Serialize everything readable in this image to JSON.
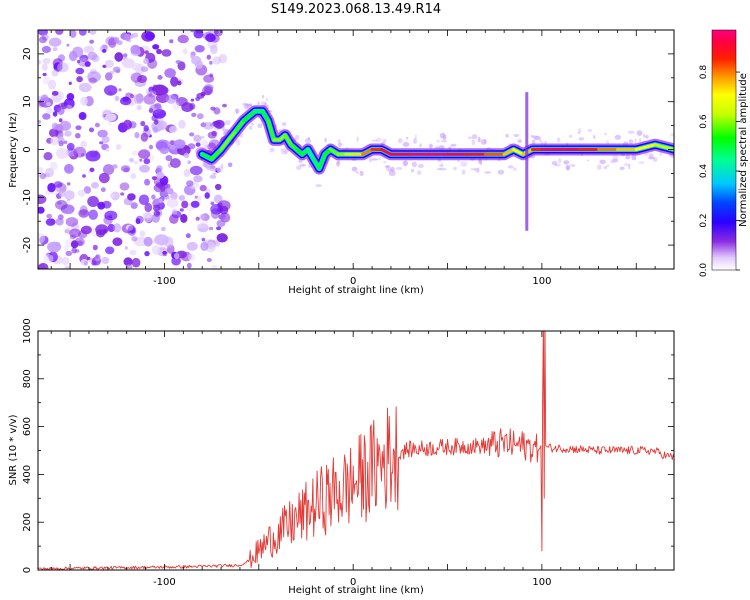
{
  "title": "S149.2023.068.13.49.R14",
  "colors": {
    "snr_line": "#e53935",
    "noise_purple": "#7a1fe0",
    "colormap": [
      "#ffffff",
      "#f3e8ff",
      "#c9a3ff",
      "#8a2be2",
      "#4b00ff",
      "#0000ff",
      "#00c8ff",
      "#00ff80",
      "#00ff00",
      "#c8ff00",
      "#ffff00",
      "#ffb000",
      "#ff4000",
      "#ff0000",
      "#ff0060"
    ]
  },
  "chart_data": [
    {
      "type": "heatmap",
      "title": "S149.2023.068.13.49.R14",
      "xlabel": "Height of straight line (km)",
      "ylabel": "Frequency (Hz)",
      "xlim": [
        -167,
        170
      ],
      "ylim": [
        -25,
        25
      ],
      "xticks": [
        -100,
        0,
        100
      ],
      "yticks": [
        -20,
        -10,
        0,
        10,
        20
      ],
      "colorbar": {
        "label": "Normalized spectral amplitude",
        "range": [
          0.0,
          0.97
        ],
        "ticks": [
          0.0,
          0.2,
          0.4,
          0.6,
          0.8
        ]
      },
      "noise_region_x": [
        -167,
        -68
      ],
      "ridge": {
        "x": [
          -80,
          -75,
          -70,
          -66,
          -62,
          -58,
          -55,
          -52,
          -48,
          -45,
          -42,
          -39,
          -36,
          -33,
          -30,
          -27,
          -24,
          -21,
          -18,
          -15,
          -12,
          -8,
          -4,
          0,
          5,
          10,
          15,
          20,
          30,
          40,
          50,
          60,
          70,
          80,
          85,
          90,
          95,
          100,
          110,
          120,
          130,
          140,
          150,
          160,
          170
        ],
        "y": [
          -1,
          -2,
          0,
          2,
          4,
          6,
          7,
          8,
          8,
          6,
          2,
          2,
          3,
          1,
          0,
          -1,
          0,
          -2,
          -4,
          -1,
          0,
          -1,
          -1,
          -1,
          -1,
          0,
          0,
          -1,
          -1,
          -1,
          -1,
          -1,
          -1,
          -1,
          0,
          -1,
          0,
          0,
          0,
          0,
          0,
          0,
          0,
          1,
          0
        ],
        "amplitude": [
          0.5,
          0.55,
          0.6,
          0.62,
          0.6,
          0.55,
          0.55,
          0.5,
          0.5,
          0.55,
          0.6,
          0.65,
          0.6,
          0.6,
          0.55,
          0.55,
          0.5,
          0.45,
          0.55,
          0.5,
          0.6,
          0.6,
          0.65,
          0.7,
          0.8,
          0.85,
          0.9,
          0.95,
          0.97,
          0.97,
          0.97,
          0.95,
          0.9,
          0.8,
          0.75,
          0.7,
          0.85,
          0.95,
          0.97,
          0.95,
          0.85,
          0.8,
          0.75,
          0.7,
          0.6
        ]
      }
    },
    {
      "type": "line",
      "xlabel": "Height of straight line (km)",
      "ylabel": "SNR (10 * v/v)",
      "xlim": [
        -167,
        170
      ],
      "ylim": [
        0,
        1000
      ],
      "xticks": [
        -100,
        0,
        100
      ],
      "yticks": [
        0,
        200,
        400,
        600,
        800,
        1000
      ],
      "series": [
        {
          "x": [
            -167,
            -140,
            -120,
            -100,
            -80,
            -60,
            -55,
            -50,
            -45,
            -40,
            -35,
            -30,
            -25,
            -20,
            -15,
            -10,
            -5,
            0,
            5,
            10,
            15,
            20,
            25,
            30,
            40,
            50,
            60,
            70,
            75,
            80,
            85,
            90,
            95,
            98,
            100,
            101,
            102,
            103,
            105,
            110,
            120,
            130,
            140,
            150,
            160,
            165,
            170
          ],
          "values": [
            5,
            8,
            10,
            12,
            15,
            20,
            40,
            80,
            120,
            150,
            180,
            210,
            240,
            270,
            300,
            320,
            340,
            360,
            390,
            420,
            450,
            480,
            495,
            505,
            510,
            515,
            518,
            520,
            525,
            530,
            525,
            520,
            515,
            500,
            520,
            530,
            520,
            515,
            510,
            510,
            505,
            500,
            500,
            500,
            498,
            480,
            470
          ]
        }
      ]
    }
  ]
}
